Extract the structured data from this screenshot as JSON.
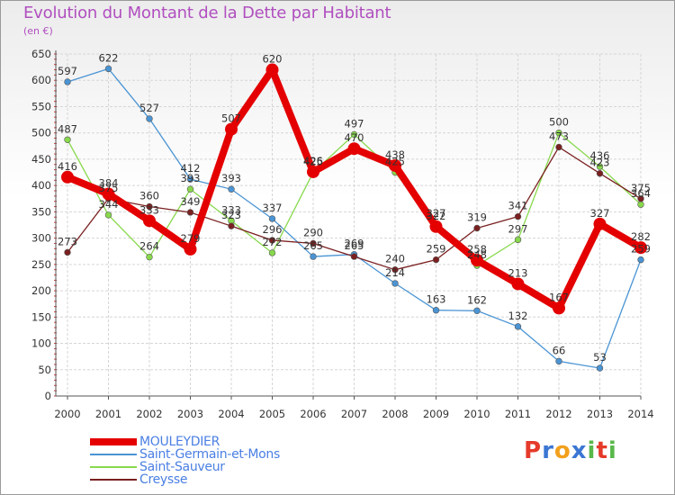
{
  "chart_data": {
    "type": "line",
    "title": "Evolution du Montant de la Dette par Habitant",
    "subtitle": "(en €)",
    "x": [
      "2000",
      "2001",
      "2002",
      "2003",
      "2004",
      "2005",
      "2006",
      "2007",
      "2008",
      "2009",
      "2010",
      "2011",
      "2012",
      "2013",
      "2014"
    ],
    "yticks": [
      "0",
      "50",
      "100",
      "150",
      "200",
      "250",
      "300",
      "350",
      "400",
      "450",
      "500",
      "550",
      "600",
      "650"
    ],
    "ylim": [
      0,
      650
    ],
    "grid": true,
    "legend_position": "bottom-left",
    "series": [
      {
        "name": "MOULEYDIER",
        "color": "#e40000",
        "values": [
          416,
          384,
          333,
          279,
          507,
          620,
          426,
          470,
          438,
          322,
          258,
          213,
          167,
          327,
          282
        ]
      },
      {
        "name": "Saint-Germain-et-Mons",
        "color": "#4a94d4",
        "values": [
          597,
          622,
          527,
          412,
          393,
          337,
          265,
          269,
          214,
          163,
          162,
          132,
          66,
          53,
          259
        ]
      },
      {
        "name": "Saint-Sauveur",
        "color": "#88d84c",
        "values": [
          487,
          344,
          264,
          393,
          333,
          272,
          425,
          497,
          425,
          327,
          248,
          297,
          500,
          436,
          364
        ]
      },
      {
        "name": "Creysse",
        "color": "#7a2020",
        "values": [
          273,
          375,
          360,
          349,
          323,
          296,
          290,
          265,
          240,
          259,
          319,
          341,
          473,
          423,
          375
        ]
      }
    ]
  },
  "logo": {
    "text": "Proxiti",
    "letters": [
      "P",
      "r",
      "o",
      "x",
      "i",
      "t",
      "i"
    ],
    "colors": [
      "#e53a2a",
      "#3b76d3",
      "#f2a01c",
      "#3b76d3",
      "#58b84a",
      "#e53a2a",
      "#58b84a"
    ]
  }
}
